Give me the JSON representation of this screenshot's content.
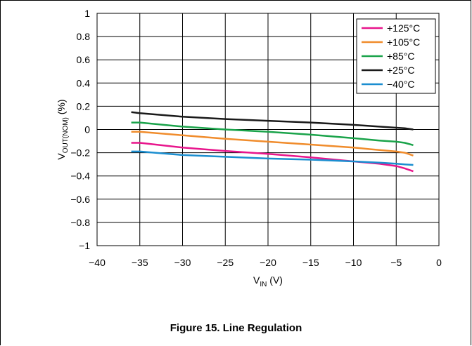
{
  "caption": "Figure 15. Line Regulation",
  "chart_data": {
    "type": "line",
    "title": "",
    "xlabel_main": "V",
    "xlabel_sub": "IN",
    "xlabel_unit": " (V)",
    "ylabel_main": "V",
    "ylabel_sub": "OUT(NOM)",
    "ylabel_unit": " (%)",
    "xlim": [
      -40,
      0
    ],
    "ylim": [
      -1,
      1
    ],
    "xticks": [
      -40,
      -35,
      -30,
      -25,
      -20,
      -15,
      -10,
      -5,
      0
    ],
    "xtick_labels": [
      "−40",
      "−35",
      "−30",
      "−25",
      "−20",
      "−15",
      "−10",
      "−5",
      "0"
    ],
    "yticks": [
      1,
      0.8,
      0.6,
      0.4,
      0.2,
      0,
      -0.2,
      -0.4,
      -0.6,
      -0.8,
      -1
    ],
    "ytick_labels": [
      "1",
      "0.8",
      "0.6",
      "0.4",
      "0.2",
      "0",
      "−0.2",
      "−0.4",
      "−0.6",
      "−0.8",
      "−1"
    ],
    "grid": true,
    "legend_position": "top-right",
    "series": [
      {
        "name": "+125°C",
        "color": "#e8158c",
        "x": [
          -36,
          -35,
          -30,
          -25,
          -20,
          -15,
          -10,
          -7,
          -5,
          -4,
          -3
        ],
        "y": [
          -0.115,
          -0.115,
          -0.155,
          -0.185,
          -0.21,
          -0.24,
          -0.275,
          -0.295,
          -0.315,
          -0.335,
          -0.36
        ]
      },
      {
        "name": "+105°C",
        "color": "#f08c2c",
        "x": [
          -36,
          -35,
          -30,
          -25,
          -20,
          -15,
          -10,
          -8,
          -5,
          -4,
          -3
        ],
        "y": [
          -0.02,
          -0.02,
          -0.05,
          -0.08,
          -0.105,
          -0.13,
          -0.155,
          -0.17,
          -0.19,
          -0.2,
          -0.225
        ]
      },
      {
        "name": "+85°C",
        "color": "#1aa34a",
        "x": [
          -36,
          -35,
          -30,
          -25,
          -20,
          -15,
          -10,
          -7,
          -5,
          -4,
          -3
        ],
        "y": [
          0.06,
          0.06,
          0.025,
          0.0,
          -0.02,
          -0.045,
          -0.075,
          -0.095,
          -0.105,
          -0.115,
          -0.135
        ]
      },
      {
        "name": "+25°C",
        "color": "#1a1a1a",
        "x": [
          -36,
          -35,
          -30,
          -25,
          -20,
          -15,
          -10,
          -7,
          -5,
          -4,
          -3
        ],
        "y": [
          0.15,
          0.14,
          0.11,
          0.09,
          0.075,
          0.06,
          0.04,
          0.025,
          0.015,
          0.01,
          0.0
        ]
      },
      {
        "name": "−40°C",
        "color": "#1b8ed0",
        "x": [
          -36,
          -35,
          -30,
          -25,
          -20,
          -15,
          -10,
          -7,
          -5,
          -4,
          -3
        ],
        "y": [
          -0.19,
          -0.19,
          -0.22,
          -0.235,
          -0.25,
          -0.26,
          -0.275,
          -0.285,
          -0.295,
          -0.3,
          -0.305
        ]
      }
    ]
  }
}
